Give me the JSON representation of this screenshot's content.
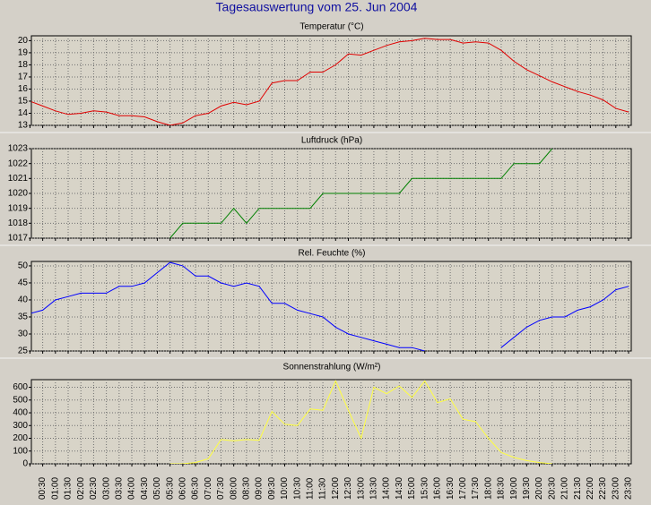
{
  "title": "Tagesauswertung vom 25. Jun 2004",
  "chart_data": [
    {
      "type": "line",
      "title": "Temperatur (°C)",
      "color": "#e00000",
      "ylim": [
        13,
        20.4
      ],
      "yticks": [
        13,
        14,
        15,
        16,
        17,
        18,
        19,
        20
      ],
      "grid": true,
      "values": [
        15.0,
        14.6,
        14.2,
        13.9,
        14.0,
        14.2,
        14.1,
        13.8,
        13.8,
        13.7,
        13.3,
        13.0,
        13.2,
        13.8,
        14.0,
        14.6,
        14.9,
        14.7,
        15.0,
        16.5,
        16.7,
        16.7,
        17.4,
        17.4,
        18.0,
        18.9,
        18.8,
        19.2,
        19.6,
        19.9,
        20.0,
        20.2,
        20.1,
        20.1,
        19.8,
        19.9,
        19.8,
        19.2,
        18.3,
        17.6,
        17.1,
        16.6,
        16.2,
        15.8,
        15.5,
        15.1,
        14.4,
        14.1
      ]
    },
    {
      "type": "line",
      "title": "Luftdruck (hPa)",
      "color": "#008000",
      "ylim": [
        1017,
        1023
      ],
      "yticks": [
        1017,
        1018,
        1019,
        1020,
        1021,
        1022,
        1023
      ],
      "grid": true,
      "values": [
        null,
        null,
        null,
        null,
        null,
        null,
        null,
        null,
        null,
        null,
        null,
        1017,
        1018,
        1018,
        1018,
        1018,
        1019,
        1018,
        1019,
        1019,
        1019,
        1019,
        1019,
        1020,
        1020,
        1020,
        1020,
        1020,
        1020,
        1020,
        1021,
        1021,
        1021,
        1021,
        1021,
        1021,
        1021,
        1021,
        1022,
        1022,
        1022,
        1023,
        null,
        null,
        null,
        null,
        null,
        null
      ]
    },
    {
      "type": "line",
      "title": "Rel. Feuchte (%)",
      "color": "#0000ff",
      "ylim": [
        25,
        51.3
      ],
      "yticks": [
        25,
        30,
        35,
        40,
        45,
        50
      ],
      "grid": true,
      "values": [
        36,
        37,
        40,
        41,
        42,
        42,
        42,
        44,
        44,
        45,
        48,
        51,
        50,
        47,
        47,
        45,
        44,
        45,
        44,
        39,
        39,
        37,
        36,
        35,
        32,
        30,
        29,
        28,
        27,
        26,
        26,
        25,
        null,
        null,
        null,
        null,
        null,
        26,
        29,
        32,
        34,
        35,
        35,
        37,
        38,
        40,
        43,
        44
      ]
    },
    {
      "type": "line",
      "title": "Sonnenstrahlung (W/m²)",
      "color": "#ffff40",
      "ylim": [
        0,
        660
      ],
      "yticks": [
        0,
        100,
        200,
        300,
        400,
        500,
        600
      ],
      "grid": true,
      "values": [
        null,
        null,
        null,
        null,
        null,
        null,
        null,
        null,
        null,
        null,
        null,
        0,
        0,
        10,
        40,
        190,
        180,
        190,
        185,
        410,
        310,
        300,
        430,
        420,
        650,
        420,
        200,
        600,
        550,
        610,
        520,
        650,
        480,
        510,
        350,
        330,
        200,
        90,
        50,
        25,
        10,
        0,
        null,
        null,
        null,
        null,
        null,
        null
      ],
      "categories": [
        null,
        "00:30",
        "01:00",
        "01:30",
        "02:00",
        "02:30",
        "03:00",
        "03:30",
        "04:00",
        "04:30",
        "05:00",
        "05:30",
        "06:00",
        "06:30",
        "07:00",
        "07:30",
        "08:00",
        "08:30",
        "09:00",
        "09:30",
        "10:00",
        "10:30",
        "11:00",
        "11:30",
        "12:00",
        "12:30",
        "13:00",
        "13:30",
        "14:00",
        "14:30",
        "15:00",
        "15:30",
        "16:00",
        "16:30",
        "17:00",
        "17:30",
        "18:00",
        "18:30",
        "19:00",
        "19:30",
        "20:00",
        "20:30",
        "21:00",
        "21:30",
        "22:00",
        "22:30",
        "23:00",
        "23:30"
      ]
    }
  ]
}
